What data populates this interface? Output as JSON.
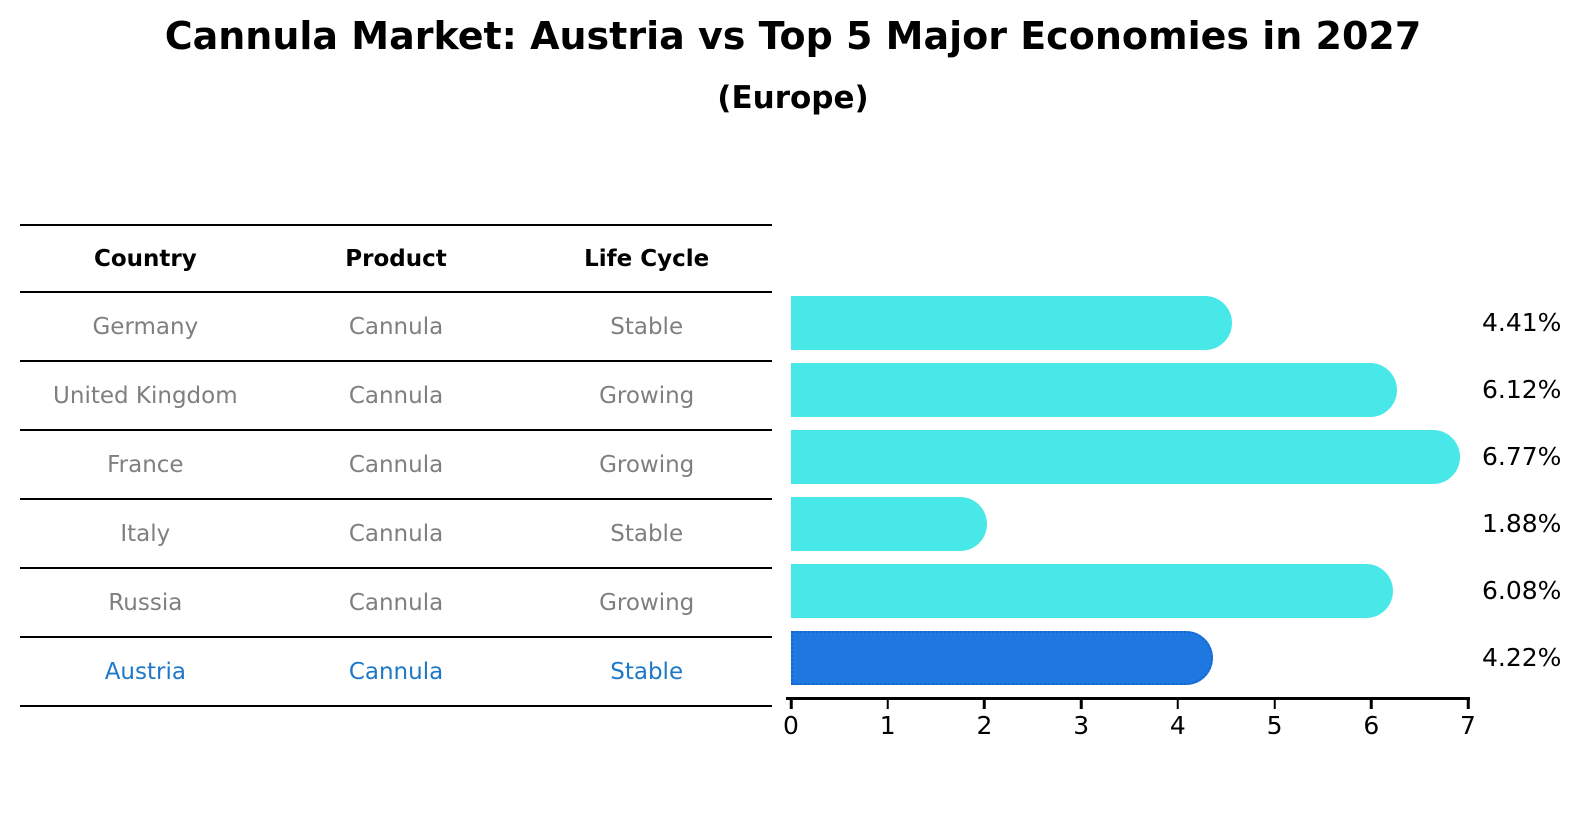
{
  "title": "Cannula Market: Austria vs Top 5 Major Economies in 2027",
  "subtitle": "(Europe)",
  "table": {
    "headers": [
      "Country",
      "Product",
      "Life Cycle"
    ],
    "rows": [
      {
        "country": "Germany",
        "product": "Cannula",
        "life_cycle": "Stable",
        "highlight": false
      },
      {
        "country": "United Kingdom",
        "product": "Cannula",
        "life_cycle": "Growing",
        "highlight": false
      },
      {
        "country": "France",
        "product": "Cannula",
        "life_cycle": "Growing",
        "highlight": false
      },
      {
        "country": "Italy",
        "product": "Cannula",
        "life_cycle": "Stable",
        "highlight": false
      },
      {
        "country": "Russia",
        "product": "Cannula",
        "life_cycle": "Growing",
        "highlight": false
      },
      {
        "country": "Austria",
        "product": "Cannula",
        "life_cycle": "Stable",
        "highlight": true
      }
    ]
  },
  "chart_data": {
    "type": "bar",
    "orientation": "horizontal",
    "title": "Cannula Market: Austria vs Top 5 Major Economies in 2027",
    "subtitle": "(Europe)",
    "categories": [
      "Germany",
      "United Kingdom",
      "France",
      "Italy",
      "Russia",
      "Austria"
    ],
    "values": [
      4.41,
      6.12,
      6.77,
      1.88,
      6.08,
      4.22
    ],
    "value_labels": [
      "4.41%",
      "6.12%",
      "6.77%",
      "1.88%",
      "6.08%",
      "4.22%"
    ],
    "xlim": [
      0,
      7
    ],
    "x_ticks": [
      0,
      1,
      2,
      3,
      4,
      5,
      6,
      7
    ],
    "grid": false,
    "legend": "none",
    "highlight_index": 5,
    "colors": {
      "bar": "#48e8e8",
      "highlight_bar": "#1e78e0",
      "highlight_border": "#1565d0",
      "highlight_text": "#1e78c8",
      "table_text": "#7f7f7f",
      "header_text": "#000000",
      "axis": "#000000"
    }
  }
}
